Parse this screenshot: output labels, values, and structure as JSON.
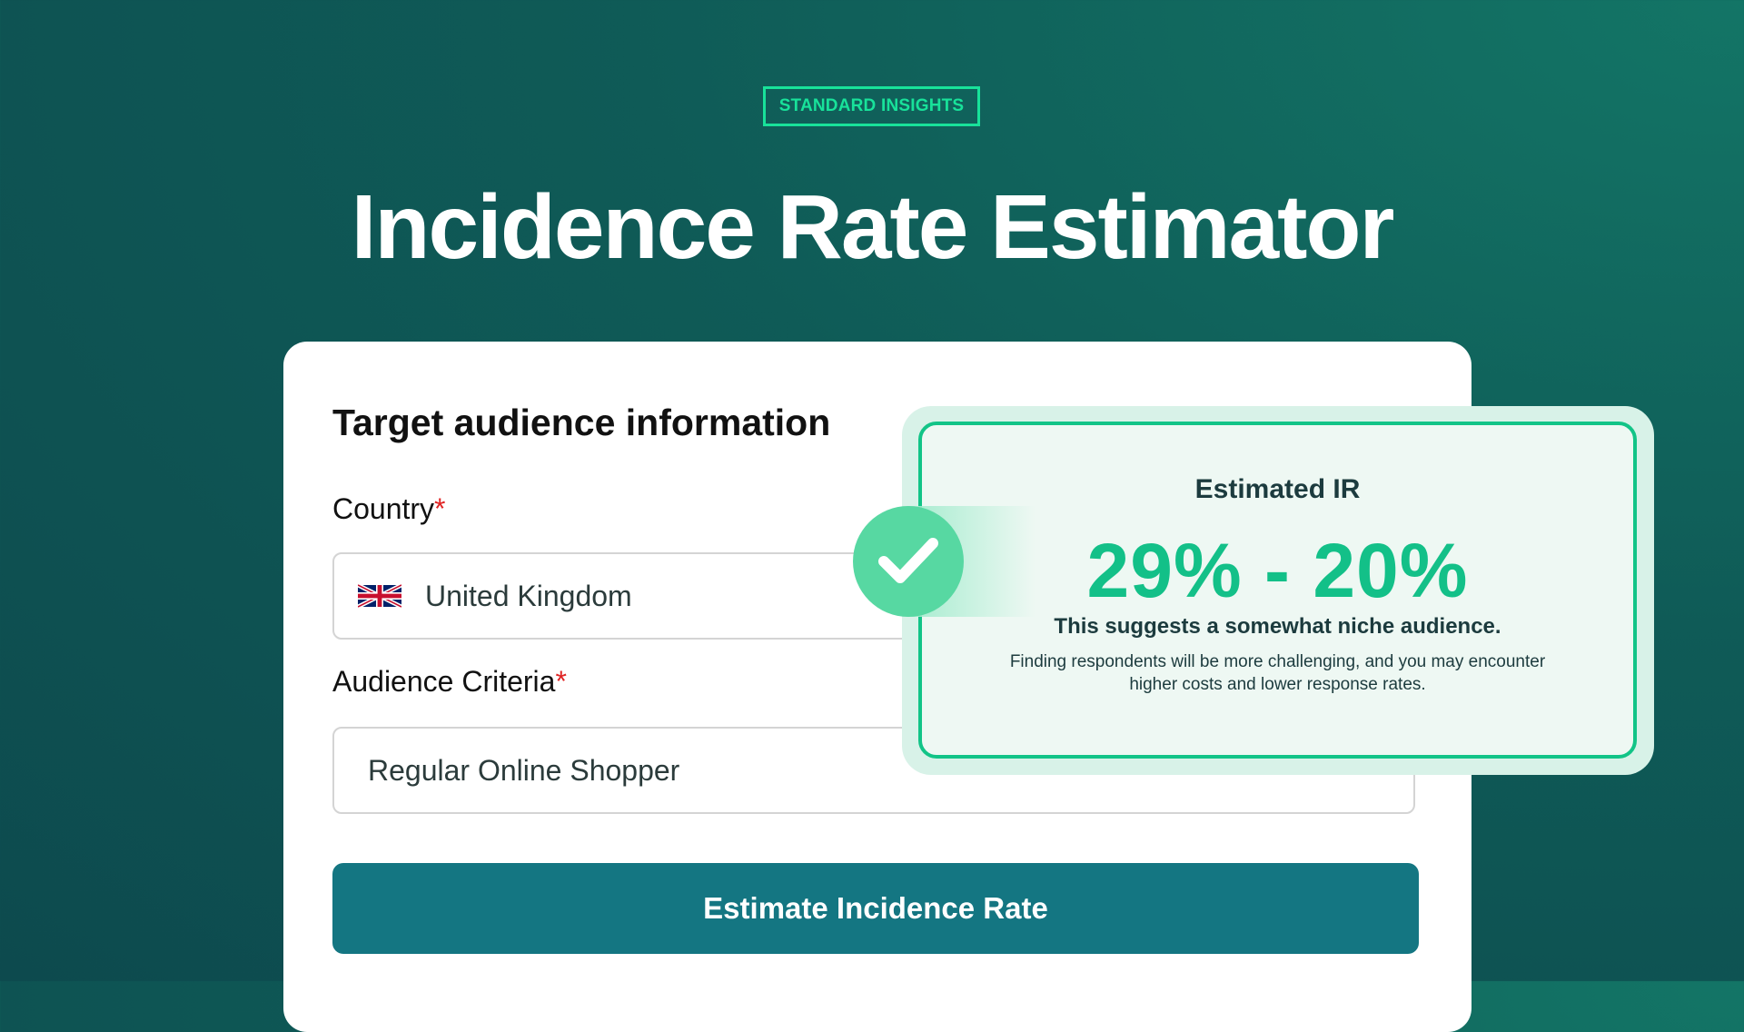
{
  "brand": {
    "badge": "STANDARD INSIGHTS"
  },
  "header": {
    "title": "Incidence Rate Estimator"
  },
  "form": {
    "section_title": "Target audience information",
    "country": {
      "label": "Country",
      "required_mark": "*",
      "value": "United Kingdom",
      "flag_icon": "uk-flag-icon"
    },
    "criteria": {
      "label": "Audience Criteria",
      "required_mark": "*",
      "value": "Regular Online Shopper"
    },
    "submit_label": "Estimate Incidence Rate"
  },
  "result": {
    "title": "Estimated IR",
    "range": "29% - 20%",
    "summary": "This suggests a somewhat niche audience.",
    "description": "Finding respondents will be more challenging, and you may encounter higher costs and lower response rates.",
    "status_icon": "check-icon"
  },
  "colors": {
    "accent": "#13c088",
    "button": "#147682",
    "badge": "#18e29a",
    "required": "#e02424"
  }
}
